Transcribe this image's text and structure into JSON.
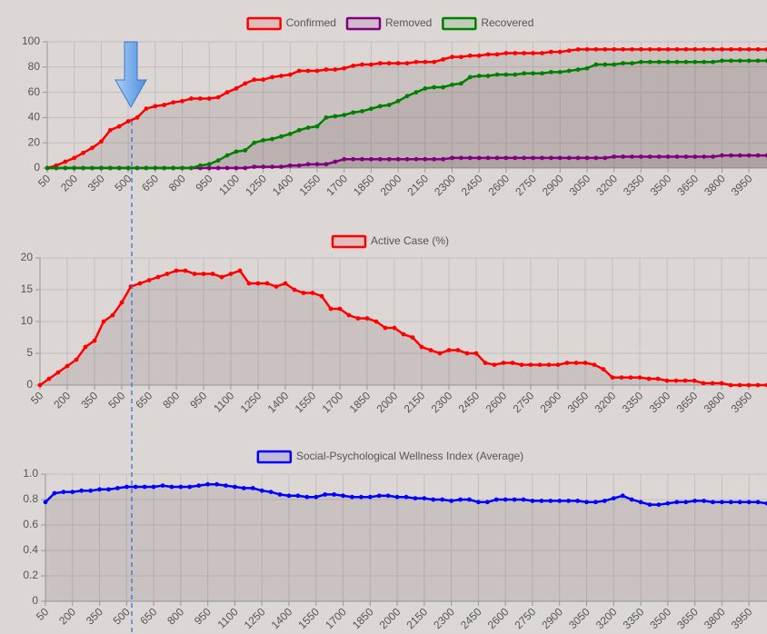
{
  "chart_data": [
    {
      "type": "line",
      "legend": "top",
      "grid": true,
      "x": [
        50,
        100,
        150,
        200,
        250,
        300,
        350,
        400,
        450,
        500,
        550,
        600,
        650,
        700,
        750,
        800,
        850,
        900,
        950,
        1000,
        1050,
        1100,
        1150,
        1200,
        1250,
        1300,
        1350,
        1400,
        1450,
        1500,
        1550,
        1600,
        1650,
        1700,
        1750,
        1800,
        1850,
        1900,
        1950,
        2000,
        2050,
        2100,
        2150,
        2200,
        2250,
        2300,
        2350,
        2400,
        2450,
        2500,
        2550,
        2600,
        2650,
        2700,
        2750,
        2800,
        2850,
        2900,
        2950,
        3000,
        3050,
        3100,
        3150,
        3200,
        3250,
        3300,
        3350,
        3400,
        3450,
        3500,
        3550,
        3600,
        3650,
        3700,
        3750,
        3800,
        3850,
        3900,
        3950,
        4000,
        4050
      ],
      "xlim": [
        50,
        4050
      ],
      "xticks": [
        50,
        200,
        350,
        500,
        650,
        800,
        950,
        1100,
        1250,
        1400,
        1550,
        1700,
        1850,
        2000,
        2150,
        2300,
        2450,
        2600,
        2750,
        2900,
        3050,
        3200,
        3350,
        3500,
        3650,
        3800,
        3950
      ],
      "ylim": [
        0,
        100
      ],
      "yticks": [
        0,
        20,
        40,
        60,
        80,
        100
      ],
      "series": [
        {
          "name": "Confirmed",
          "color": "#ff0000",
          "values": [
            0,
            2,
            5,
            8,
            12,
            16,
            21,
            30,
            33,
            37,
            40,
            47,
            49,
            50,
            52,
            53,
            55,
            55,
            55,
            56,
            60,
            63,
            67,
            70,
            70,
            72,
            73,
            74,
            77,
            77,
            77,
            78,
            78,
            79,
            81,
            82,
            82,
            83,
            83,
            83,
            83,
            84,
            84,
            84,
            86,
            88,
            88,
            89,
            89,
            90,
            90,
            91,
            91,
            91,
            91,
            91,
            92,
            92,
            93,
            94,
            94,
            94,
            94,
            94,
            94,
            94,
            94,
            94,
            94,
            94,
            94,
            94,
            94,
            94,
            94,
            94,
            94,
            94,
            94,
            94,
            94
          ]
        },
        {
          "name": "Removed",
          "color": "#800080",
          "values": [
            0,
            0,
            0,
            0,
            0,
            0,
            0,
            0,
            0,
            0,
            0,
            0,
            0,
            0,
            0,
            0,
            0,
            0,
            0,
            0,
            0,
            0,
            0,
            1,
            1,
            1,
            1,
            2,
            2,
            3,
            3,
            3,
            5,
            7,
            7,
            7,
            7,
            7,
            7,
            7,
            7,
            7,
            7,
            7,
            7,
            8,
            8,
            8,
            8,
            8,
            8,
            8,
            8,
            8,
            8,
            8,
            8,
            8,
            8,
            8,
            8,
            8,
            8,
            9,
            9,
            9,
            9,
            9,
            9,
            9,
            9,
            9,
            9,
            9,
            9,
            10,
            10,
            10,
            10,
            10,
            10
          ]
        },
        {
          "name": "Recovered",
          "color": "#008000",
          "values": [
            0,
            0,
            0,
            0,
            0,
            0,
            0,
            0,
            0,
            0,
            0,
            0,
            0,
            0,
            0,
            0,
            0,
            2,
            3,
            6,
            10,
            13,
            14,
            20,
            22,
            23,
            25,
            27,
            30,
            32,
            33,
            40,
            41,
            42,
            44,
            45,
            47,
            49,
            50,
            53,
            57,
            60,
            63,
            64,
            64,
            66,
            67,
            72,
            73,
            73,
            74,
            74,
            74,
            75,
            75,
            75,
            76,
            76,
            77,
            78,
            79,
            82,
            82,
            82,
            83,
            83,
            84,
            84,
            84,
            84,
            84,
            84,
            84,
            84,
            84,
            85,
            85,
            85,
            85,
            85,
            85
          ]
        }
      ]
    },
    {
      "type": "line",
      "legend": "top",
      "grid": true,
      "x": [
        50,
        100,
        150,
        200,
        250,
        300,
        350,
        400,
        450,
        500,
        550,
        600,
        650,
        700,
        750,
        800,
        850,
        900,
        950,
        1000,
        1050,
        1100,
        1150,
        1200,
        1250,
        1300,
        1350,
        1400,
        1450,
        1500,
        1550,
        1600,
        1650,
        1700,
        1750,
        1800,
        1850,
        1900,
        1950,
        2000,
        2050,
        2100,
        2150,
        2200,
        2250,
        2300,
        2350,
        2400,
        2450,
        2500,
        2550,
        2600,
        2650,
        2700,
        2750,
        2800,
        2850,
        2900,
        2950,
        3000,
        3050,
        3100,
        3150,
        3200,
        3250,
        3300,
        3350,
        3400,
        3450,
        3500,
        3550,
        3600,
        3650,
        3700,
        3750,
        3800,
        3850,
        3900,
        3950,
        4000,
        4050
      ],
      "xlim": [
        50,
        4050
      ],
      "xticks": [
        50,
        200,
        350,
        500,
        650,
        800,
        950,
        1100,
        1250,
        1400,
        1550,
        1700,
        1850,
        2000,
        2150,
        2300,
        2450,
        2600,
        2750,
        2900,
        3050,
        3200,
        3350,
        3500,
        3650,
        3800,
        3950
      ],
      "ylim": [
        0,
        20
      ],
      "yticks": [
        0,
        5,
        10,
        15,
        20
      ],
      "series": [
        {
          "name": "Active Case (%)",
          "color": "#ff0000",
          "values": [
            0,
            1,
            2,
            3,
            4,
            6,
            7,
            10,
            11,
            13,
            15.5,
            16,
            16.5,
            17,
            17.5,
            18,
            18,
            17.5,
            17.5,
            17.5,
            17,
            17.5,
            18,
            16,
            16,
            16,
            15.5,
            16,
            15,
            14.5,
            14.5,
            14,
            12,
            12,
            11,
            10.5,
            10.5,
            10,
            9,
            9,
            8,
            7.5,
            6,
            5.5,
            5,
            5.5,
            5.5,
            5,
            5,
            3.5,
            3.2,
            3.5,
            3.5,
            3.2,
            3.2,
            3.2,
            3.2,
            3.2,
            3.5,
            3.5,
            3.5,
            3.2,
            2.5,
            1.2,
            1.2,
            1.2,
            1.2,
            1,
            1,
            0.7,
            0.7,
            0.7,
            0.7,
            0.3,
            0.3,
            0.3,
            0,
            0,
            0,
            0,
            0
          ]
        }
      ]
    },
    {
      "type": "line",
      "legend": "top",
      "grid": true,
      "x": [
        50,
        100,
        150,
        200,
        250,
        300,
        350,
        400,
        450,
        500,
        550,
        600,
        650,
        700,
        750,
        800,
        850,
        900,
        950,
        1000,
        1050,
        1100,
        1150,
        1200,
        1250,
        1300,
        1350,
        1400,
        1450,
        1500,
        1550,
        1600,
        1650,
        1700,
        1750,
        1800,
        1850,
        1900,
        1950,
        2000,
        2050,
        2100,
        2150,
        2200,
        2250,
        2300,
        2350,
        2400,
        2450,
        2500,
        2550,
        2600,
        2650,
        2700,
        2750,
        2800,
        2850,
        2900,
        2950,
        3000,
        3050,
        3100,
        3150,
        3200,
        3250,
        3300,
        3350,
        3400,
        3450,
        3500,
        3550,
        3600,
        3650,
        3700,
        3750,
        3800,
        3850,
        3900,
        3950,
        4000,
        4050
      ],
      "xlim": [
        50,
        4050
      ],
      "xticks": [
        50,
        200,
        350,
        500,
        650,
        800,
        950,
        1100,
        1250,
        1400,
        1550,
        1700,
        1850,
        2000,
        2150,
        2300,
        2450,
        2600,
        2750,
        2900,
        3050,
        3200,
        3350,
        3500,
        3650,
        3800,
        3950
      ],
      "ylim": [
        0,
        1
      ],
      "yticks": [
        0,
        0.2,
        0.4,
        0.6,
        0.8,
        {
          "value": 1,
          "label": "1.0"
        }
      ],
      "series": [
        {
          "name": "Social-Psychological Wellness Index (Average)",
          "color": "#0000ff",
          "values": [
            0.78,
            0.85,
            0.86,
            0.86,
            0.87,
            0.87,
            0.88,
            0.88,
            0.89,
            0.9,
            0.9,
            0.9,
            0.9,
            0.91,
            0.9,
            0.9,
            0.9,
            0.91,
            0.92,
            0.92,
            0.91,
            0.9,
            0.89,
            0.89,
            0.87,
            0.86,
            0.84,
            0.83,
            0.83,
            0.82,
            0.82,
            0.84,
            0.84,
            0.83,
            0.82,
            0.82,
            0.82,
            0.83,
            0.83,
            0.82,
            0.82,
            0.81,
            0.81,
            0.8,
            0.8,
            0.79,
            0.8,
            0.8,
            0.78,
            0.78,
            0.8,
            0.8,
            0.8,
            0.8,
            0.79,
            0.79,
            0.79,
            0.79,
            0.79,
            0.79,
            0.78,
            0.78,
            0.79,
            0.81,
            0.83,
            0.8,
            0.78,
            0.76,
            0.76,
            0.77,
            0.78,
            0.78,
            0.79,
            0.79,
            0.78,
            0.78,
            0.78,
            0.78,
            0.78,
            0.78,
            0.77
          ]
        }
      ]
    }
  ]
}
